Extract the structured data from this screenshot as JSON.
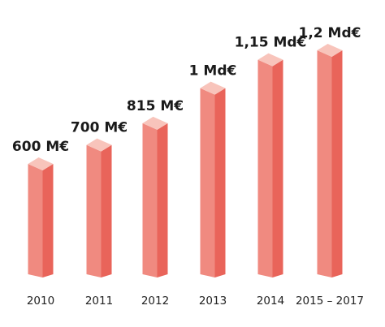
{
  "chart_data": {
    "type": "bar",
    "title": "",
    "xlabel": "",
    "ylabel": "",
    "categories": [
      "2010",
      "2011",
      "2012",
      "2013",
      "2014",
      "2015 – 2017"
    ],
    "values": [
      600,
      700,
      815,
      1000,
      1150,
      1200
    ],
    "data_labels": [
      "600 M€",
      "700 M€",
      "815 M€",
      "1 Md€",
      "1,15 Md€",
      "1,2 Md€"
    ],
    "unit": "M€",
    "ylim": [
      0,
      1200
    ],
    "grid": false,
    "legend": "none",
    "style": "3d-bar",
    "colors": {
      "front": "#f08a80",
      "side": "#e9645a",
      "top": "#f8c4bb"
    }
  }
}
